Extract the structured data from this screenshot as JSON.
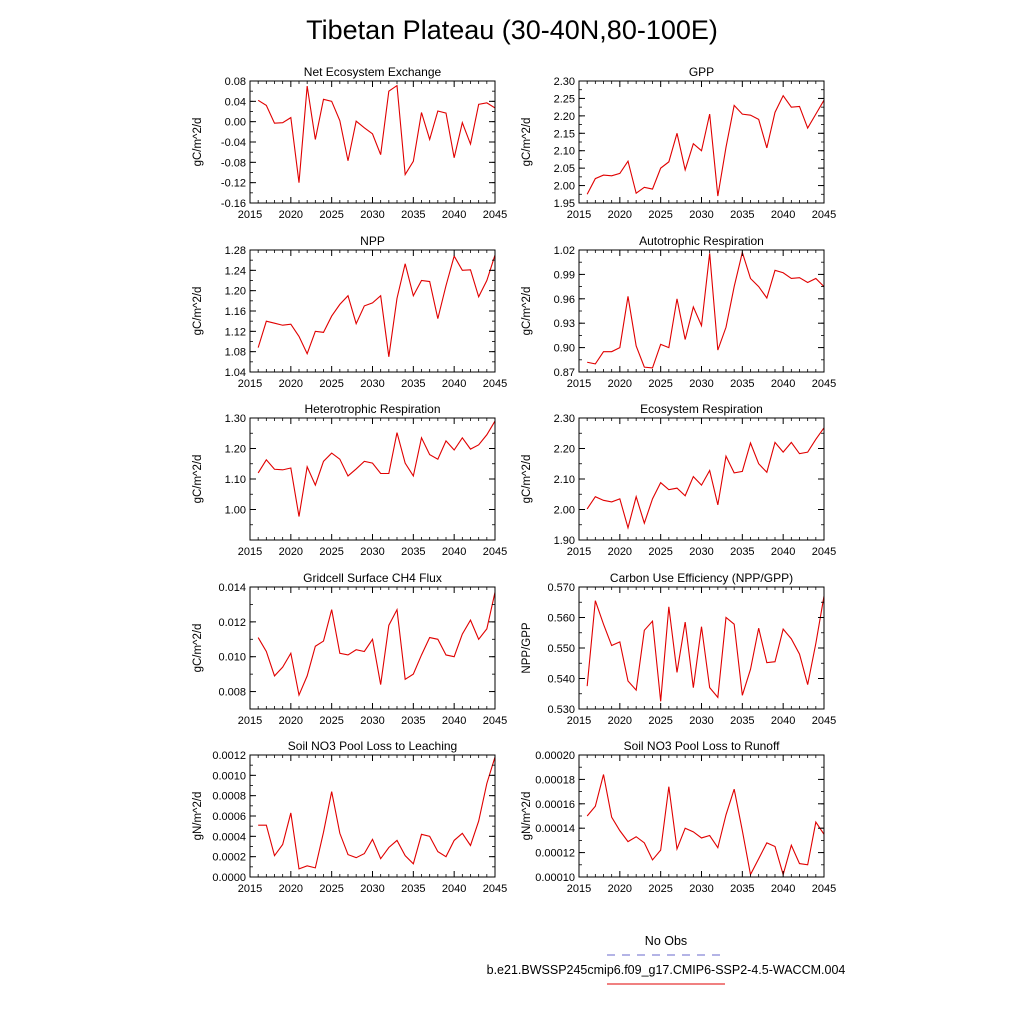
{
  "figure": {
    "title": "Tibetan Plateau (30-40N,80-100E)"
  },
  "legend": {
    "items": [
      {
        "label": "No Obs",
        "color": "#6a6acd",
        "style": "dashed"
      },
      {
        "label": "b.e21.BWSSP245cmip6.f09_g17.CMIP6-SSP2-4.5-WACCM.004",
        "color": "#e00000",
        "style": "solid"
      }
    ]
  },
  "chart_data": [
    {
      "type": "line",
      "title": "Net Ecosystem Exchange",
      "ylabel": "gC/m^2/d",
      "xlabel": "",
      "xlim": [
        2015,
        2045
      ],
      "ylim": [
        -0.16,
        0.08
      ],
      "xticks": [
        "2015",
        "2020",
        "2025",
        "2030",
        "2035",
        "2040",
        "2045"
      ],
      "yticks": [
        "-0.16",
        "-0.12",
        "-0.08",
        "-0.04",
        "0.00",
        "0.04",
        "0.08"
      ],
      "series": [
        {
          "color": "#e00000",
          "x": [
            2016,
            2017,
            2018,
            2019,
            2020,
            2021,
            2022,
            2023,
            2024,
            2025,
            2026,
            2027,
            2028,
            2029,
            2030,
            2031,
            2032,
            2033,
            2034,
            2035,
            2036,
            2037,
            2038,
            2039,
            2040,
            2041,
            2042,
            2043,
            2044,
            2045
          ],
          "values": [
            0.042,
            0.032,
            -0.003,
            -0.002,
            0.008,
            -0.12,
            0.07,
            -0.035,
            0.044,
            0.04,
            0.002,
            -0.077,
            0.001,
            -0.012,
            -0.024,
            -0.065,
            0.06,
            0.071,
            -0.104,
            -0.078,
            0.018,
            -0.035,
            0.021,
            0.017,
            -0.071,
            -0.002,
            -0.044,
            0.034,
            0.037,
            0.027
          ]
        }
      ]
    },
    {
      "type": "line",
      "title": "GPP",
      "ylabel": "gC/m^2/d",
      "xlabel": "",
      "xlim": [
        2015,
        2045
      ],
      "ylim": [
        1.95,
        2.3
      ],
      "xticks": [
        "2015",
        "2020",
        "2025",
        "2030",
        "2035",
        "2040",
        "2045"
      ],
      "yticks": [
        "1.95",
        "2.00",
        "2.05",
        "2.10",
        "2.15",
        "2.20",
        "2.25",
        "2.30"
      ],
      "series": [
        {
          "color": "#e00000",
          "x": [
            2016,
            2017,
            2018,
            2019,
            2020,
            2021,
            2022,
            2023,
            2024,
            2025,
            2026,
            2027,
            2028,
            2029,
            2030,
            2031,
            2032,
            2033,
            2034,
            2035,
            2036,
            2037,
            2038,
            2039,
            2040,
            2041,
            2042,
            2043,
            2044,
            2045
          ],
          "values": [
            1.975,
            2.02,
            2.03,
            2.028,
            2.035,
            2.07,
            1.978,
            1.995,
            1.99,
            2.05,
            2.068,
            2.15,
            2.045,
            2.12,
            2.1,
            2.205,
            1.97,
            2.11,
            2.23,
            2.205,
            2.202,
            2.19,
            2.108,
            2.21,
            2.258,
            2.225,
            2.227,
            2.165,
            2.205,
            2.245
          ]
        }
      ]
    },
    {
      "type": "line",
      "title": "NPP",
      "ylabel": "gC/m^2/d",
      "xlabel": "",
      "xlim": [
        2015,
        2045
      ],
      "ylim": [
        1.04,
        1.28
      ],
      "xticks": [
        "2015",
        "2020",
        "2025",
        "2030",
        "2035",
        "2040",
        "2045"
      ],
      "yticks": [
        "1.04",
        "1.08",
        "1.12",
        "1.16",
        "1.20",
        "1.24",
        "1.28"
      ],
      "series": [
        {
          "color": "#e00000",
          "x": [
            2016,
            2017,
            2018,
            2019,
            2020,
            2021,
            2022,
            2023,
            2024,
            2025,
            2026,
            2027,
            2028,
            2029,
            2030,
            2031,
            2032,
            2033,
            2034,
            2035,
            2036,
            2037,
            2038,
            2039,
            2040,
            2041,
            2042,
            2043,
            2044,
            2045
          ],
          "values": [
            1.088,
            1.14,
            1.136,
            1.132,
            1.134,
            1.11,
            1.076,
            1.12,
            1.118,
            1.15,
            1.173,
            1.19,
            1.135,
            1.17,
            1.176,
            1.19,
            1.07,
            1.185,
            1.253,
            1.19,
            1.22,
            1.218,
            1.145,
            1.21,
            1.268,
            1.24,
            1.241,
            1.188,
            1.22,
            1.27
          ]
        }
      ]
    },
    {
      "type": "line",
      "title": "Autotrophic Respiration",
      "ylabel": "gC/m^2/d",
      "xlabel": "",
      "xlim": [
        2015,
        2045
      ],
      "ylim": [
        0.87,
        1.02
      ],
      "xticks": [
        "2015",
        "2020",
        "2025",
        "2030",
        "2035",
        "2040",
        "2045"
      ],
      "yticks": [
        "0.87",
        "0.90",
        "0.93",
        "0.96",
        "0.99",
        "1.02"
      ],
      "series": [
        {
          "color": "#e00000",
          "x": [
            2016,
            2017,
            2018,
            2019,
            2020,
            2021,
            2022,
            2023,
            2024,
            2025,
            2026,
            2027,
            2028,
            2029,
            2030,
            2031,
            2032,
            2033,
            2034,
            2035,
            2036,
            2037,
            2038,
            2039,
            2040,
            2041,
            2042,
            2043,
            2044,
            2045
          ],
          "values": [
            0.882,
            0.88,
            0.895,
            0.895,
            0.9,
            0.963,
            0.902,
            0.876,
            0.875,
            0.904,
            0.9,
            0.96,
            0.91,
            0.95,
            0.927,
            1.016,
            0.897,
            0.925,
            0.975,
            1.017,
            0.985,
            0.975,
            0.961,
            0.995,
            0.992,
            0.985,
            0.986,
            0.98,
            0.985,
            0.975
          ]
        }
      ]
    },
    {
      "type": "line",
      "title": "Heterotrophic Respiration",
      "ylabel": "gC/m^2/d",
      "xlabel": "",
      "xlim": [
        2015,
        2045
      ],
      "ylim": [
        0.9,
        1.3
      ],
      "xticks": [
        "2015",
        "2020",
        "2025",
        "2030",
        "2035",
        "2040",
        "2045"
      ],
      "yticks": [
        "1.00",
        "1.10",
        "1.20",
        "1.30"
      ],
      "series": [
        {
          "color": "#e00000",
          "x": [
            2016,
            2017,
            2018,
            2019,
            2020,
            2021,
            2022,
            2023,
            2024,
            2025,
            2026,
            2027,
            2028,
            2029,
            2030,
            2031,
            2032,
            2033,
            2034,
            2035,
            2036,
            2037,
            2038,
            2039,
            2040,
            2041,
            2042,
            2043,
            2044,
            2045
          ],
          "values": [
            1.12,
            1.163,
            1.132,
            1.13,
            1.136,
            0.977,
            1.14,
            1.08,
            1.158,
            1.185,
            1.165,
            1.11,
            1.133,
            1.158,
            1.152,
            1.118,
            1.118,
            1.252,
            1.152,
            1.11,
            1.235,
            1.18,
            1.165,
            1.225,
            1.195,
            1.235,
            1.198,
            1.212,
            1.245,
            1.29
          ]
        }
      ]
    },
    {
      "type": "line",
      "title": "Ecosystem Respiration",
      "ylabel": "gC/m^2/d",
      "xlabel": "",
      "xlim": [
        2015,
        2045
      ],
      "ylim": [
        1.9,
        2.3
      ],
      "xticks": [
        "2015",
        "2020",
        "2025",
        "2030",
        "2035",
        "2040",
        "2045"
      ],
      "yticks": [
        "1.90",
        "2.00",
        "2.10",
        "2.20",
        "2.30"
      ],
      "series": [
        {
          "color": "#e00000",
          "x": [
            2016,
            2017,
            2018,
            2019,
            2020,
            2021,
            2022,
            2023,
            2024,
            2025,
            2026,
            2027,
            2028,
            2029,
            2030,
            2031,
            2032,
            2033,
            2034,
            2035,
            2036,
            2037,
            2038,
            2039,
            2040,
            2041,
            2042,
            2043,
            2044,
            2045
          ],
          "values": [
            2.002,
            2.042,
            2.03,
            2.025,
            2.035,
            1.94,
            2.042,
            1.955,
            2.035,
            2.088,
            2.065,
            2.07,
            2.045,
            2.108,
            2.08,
            2.128,
            2.015,
            2.175,
            2.12,
            2.125,
            2.218,
            2.15,
            2.122,
            2.22,
            2.188,
            2.22,
            2.183,
            2.188,
            2.23,
            2.268
          ]
        }
      ]
    },
    {
      "type": "line",
      "title": "Gridcell Surface CH4 Flux",
      "ylabel": "gC/m^2/d",
      "xlabel": "",
      "xlim": [
        2015,
        2045
      ],
      "ylim": [
        0.007,
        0.014
      ],
      "xticks": [
        "2015",
        "2020",
        "2025",
        "2030",
        "2035",
        "2040",
        "2045"
      ],
      "yticks": [
        "0.008",
        "0.010",
        "0.012",
        "0.014"
      ],
      "series": [
        {
          "color": "#e00000",
          "x": [
            2016,
            2017,
            2018,
            2019,
            2020,
            2021,
            2022,
            2023,
            2024,
            2025,
            2026,
            2027,
            2028,
            2029,
            2030,
            2031,
            2032,
            2033,
            2034,
            2035,
            2036,
            2037,
            2038,
            2039,
            2040,
            2041,
            2042,
            2043,
            2044,
            2045
          ],
          "values": [
            0.0111,
            0.0103,
            0.0089,
            0.0094,
            0.0102,
            0.0078,
            0.0089,
            0.0106,
            0.0109,
            0.0127,
            0.0102,
            0.0101,
            0.0104,
            0.0103,
            0.011,
            0.0084,
            0.0118,
            0.0127,
            0.0087,
            0.009,
            0.0101,
            0.0111,
            0.011,
            0.0101,
            0.01,
            0.0113,
            0.0121,
            0.011,
            0.0116,
            0.0137
          ]
        }
      ]
    },
    {
      "type": "line",
      "title": "Carbon Use Efficiency (NPP/GPP)",
      "ylabel": "NPP/GPP",
      "xlabel": "",
      "xlim": [
        2015,
        2045
      ],
      "ylim": [
        0.53,
        0.57
      ],
      "xticks": [
        "2015",
        "2020",
        "2025",
        "2030",
        "2035",
        "2040",
        "2045"
      ],
      "yticks": [
        "0.530",
        "0.540",
        "0.550",
        "0.560",
        "0.570"
      ],
      "series": [
        {
          "color": "#e00000",
          "x": [
            2016,
            2017,
            2018,
            2019,
            2020,
            2021,
            2022,
            2023,
            2024,
            2025,
            2026,
            2027,
            2028,
            2029,
            2030,
            2031,
            2032,
            2033,
            2034,
            2035,
            2036,
            2037,
            2038,
            2039,
            2040,
            2041,
            2042,
            2043,
            2044,
            2045
          ],
          "values": [
            0.5375,
            0.5655,
            0.5578,
            0.5508,
            0.552,
            0.5392,
            0.5362,
            0.5558,
            0.5588,
            0.5325,
            0.5635,
            0.542,
            0.5585,
            0.537,
            0.557,
            0.537,
            0.5338,
            0.56,
            0.5578,
            0.5345,
            0.543,
            0.5565,
            0.5452,
            0.5455,
            0.5562,
            0.553,
            0.548,
            0.538,
            0.5515,
            0.567
          ]
        }
      ]
    },
    {
      "type": "line",
      "title": "Soil NO3 Pool Loss to Leaching",
      "ylabel": "gN/m^2/d",
      "xlabel": "",
      "xlim": [
        2015,
        2045
      ],
      "ylim": [
        0.0,
        0.0012
      ],
      "xticks": [
        "2015",
        "2020",
        "2025",
        "2030",
        "2035",
        "2040",
        "2045"
      ],
      "yticks": [
        "0.0000",
        "0.0002",
        "0.0004",
        "0.0006",
        "0.0008",
        "0.0010",
        "0.0012"
      ],
      "series": [
        {
          "color": "#e00000",
          "x": [
            2016,
            2017,
            2018,
            2019,
            2020,
            2021,
            2022,
            2023,
            2024,
            2025,
            2026,
            2027,
            2028,
            2029,
            2030,
            2031,
            2032,
            2033,
            2034,
            2035,
            2036,
            2037,
            2038,
            2039,
            2040,
            2041,
            2042,
            2043,
            2044,
            2045
          ],
          "values": [
            0.00051,
            0.00051,
            0.00021,
            0.00032,
            0.00063,
            8e-05,
            0.00011,
            9e-05,
            0.00044,
            0.00084,
            0.00043,
            0.00022,
            0.00019,
            0.00023,
            0.00037,
            0.00018,
            0.00029,
            0.00036,
            0.00021,
            0.00013,
            0.00042,
            0.0004,
            0.00025,
            0.0002,
            0.00036,
            0.00043,
            0.00031,
            0.00055,
            0.00092,
            0.00118
          ]
        }
      ]
    },
    {
      "type": "line",
      "title": "Soil NO3 Pool Loss to Runoff",
      "ylabel": "gN/m^2/d",
      "xlabel": "",
      "xlim": [
        2015,
        2045
      ],
      "ylim": [
        0.0001,
        0.0002
      ],
      "xticks": [
        "2015",
        "2020",
        "2025",
        "2030",
        "2035",
        "2040",
        "2045"
      ],
      "yticks": [
        "0.00010",
        "0.00012",
        "0.00014",
        "0.00016",
        "0.00018",
        "0.00020"
      ],
      "series": [
        {
          "color": "#e00000",
          "x": [
            2016,
            2017,
            2018,
            2019,
            2020,
            2021,
            2022,
            2023,
            2024,
            2025,
            2026,
            2027,
            2028,
            2029,
            2030,
            2031,
            2032,
            2033,
            2034,
            2035,
            2036,
            2037,
            2038,
            2039,
            2040,
            2041,
            2042,
            2043,
            2044,
            2045
          ],
          "values": [
            0.00015,
            0.000158,
            0.000184,
            0.000149,
            0.000138,
            0.000129,
            0.000133,
            0.000128,
            0.000114,
            0.000122,
            0.000174,
            0.000123,
            0.00014,
            0.000137,
            0.000132,
            0.000134,
            0.000124,
            0.000151,
            0.000172,
            0.000138,
            0.000102,
            0.000115,
            0.000128,
            0.000125,
            0.000102,
            0.000126,
            0.000111,
            0.00011,
            0.000145,
            0.000135
          ]
        }
      ]
    }
  ]
}
